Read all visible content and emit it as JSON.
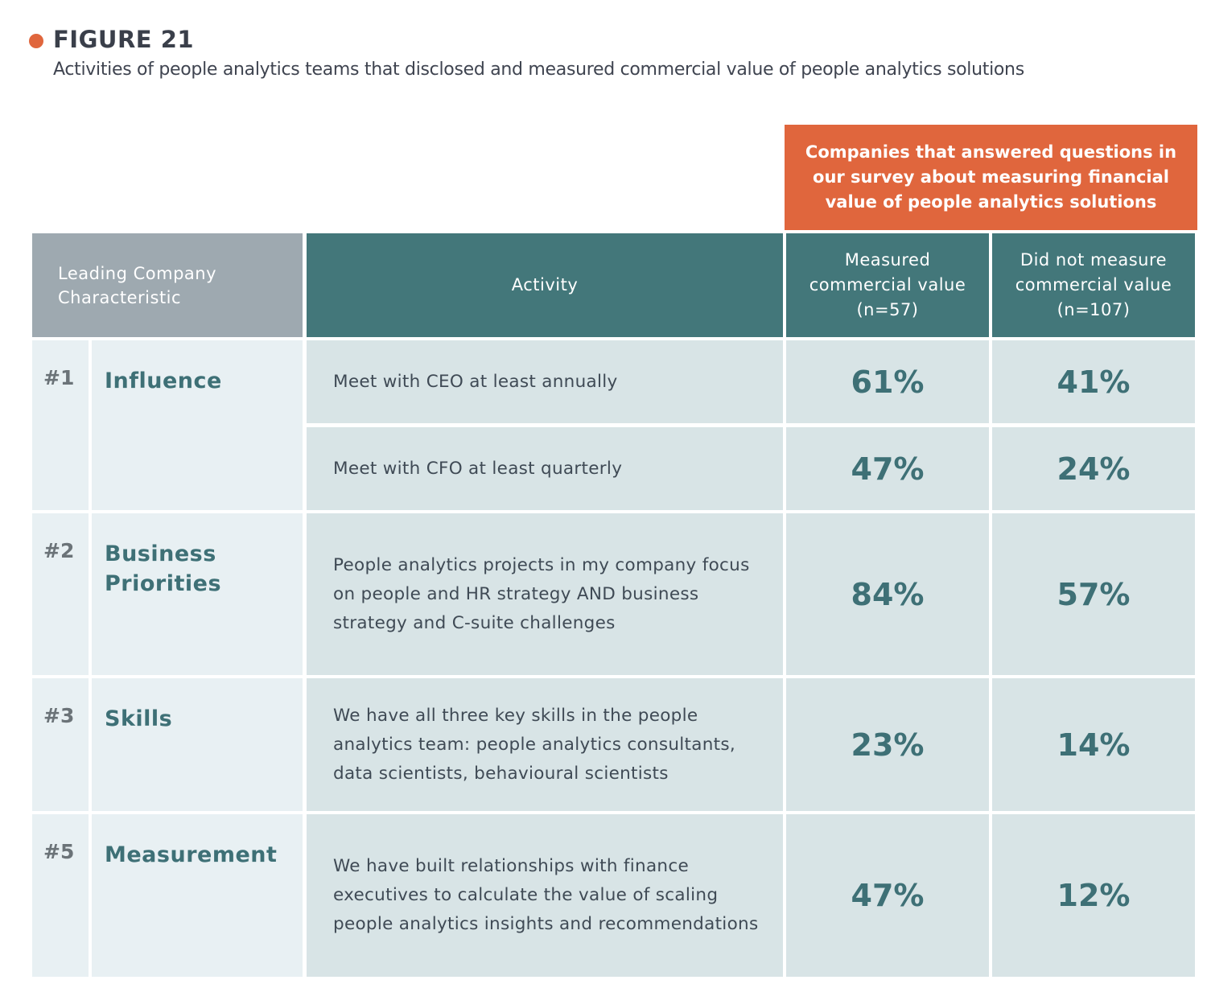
{
  "figure_label": "FIGURE 21",
  "subtitle": "Activities of people analytics teams that disclosed and measured commercial value of people analytics solutions",
  "colors": {
    "accent": "#e0663d",
    "header_teal": "#43777a",
    "header_gray": "#9ea9b0",
    "value_text": "#3e7076"
  },
  "chart_data": {
    "type": "table",
    "group_header": "Companies that answered questions in our survey about measuring financial value of people analytics solutions",
    "columns": [
      "Leading Company Characteristic",
      "Activity",
      "Measured commercial value (n=57)",
      "Did not measure commercial value (n=107)"
    ],
    "groups": [
      {
        "rank": "#1",
        "characteristic": "Influence",
        "rows": [
          {
            "activity": "Meet with CEO at least annually",
            "measured": "61%",
            "not_measured": "41%"
          },
          {
            "activity": "Meet with CFO at least quarterly",
            "measured": "47%",
            "not_measured": "24%"
          }
        ]
      },
      {
        "rank": "#2",
        "characteristic": "Business Priorities",
        "rows": [
          {
            "activity": "People analytics projects in my company focus on people and HR strategy AND business strategy and C-suite challenges",
            "measured": "84%",
            "not_measured": "57%"
          }
        ]
      },
      {
        "rank": "#3",
        "characteristic": "Skills",
        "rows": [
          {
            "activity": "We have all three key skills in the people analytics team: people analytics consultants, data scientists, behavioural scientists",
            "measured": "23%",
            "not_measured": "14%"
          }
        ]
      },
      {
        "rank": "#5",
        "characteristic": "Measurement",
        "rows": [
          {
            "activity": "We have built relationships with finance executives to calculate the value of scaling people analytics insights and recommendations",
            "measured": "47%",
            "not_measured": "12%"
          }
        ]
      }
    ]
  }
}
